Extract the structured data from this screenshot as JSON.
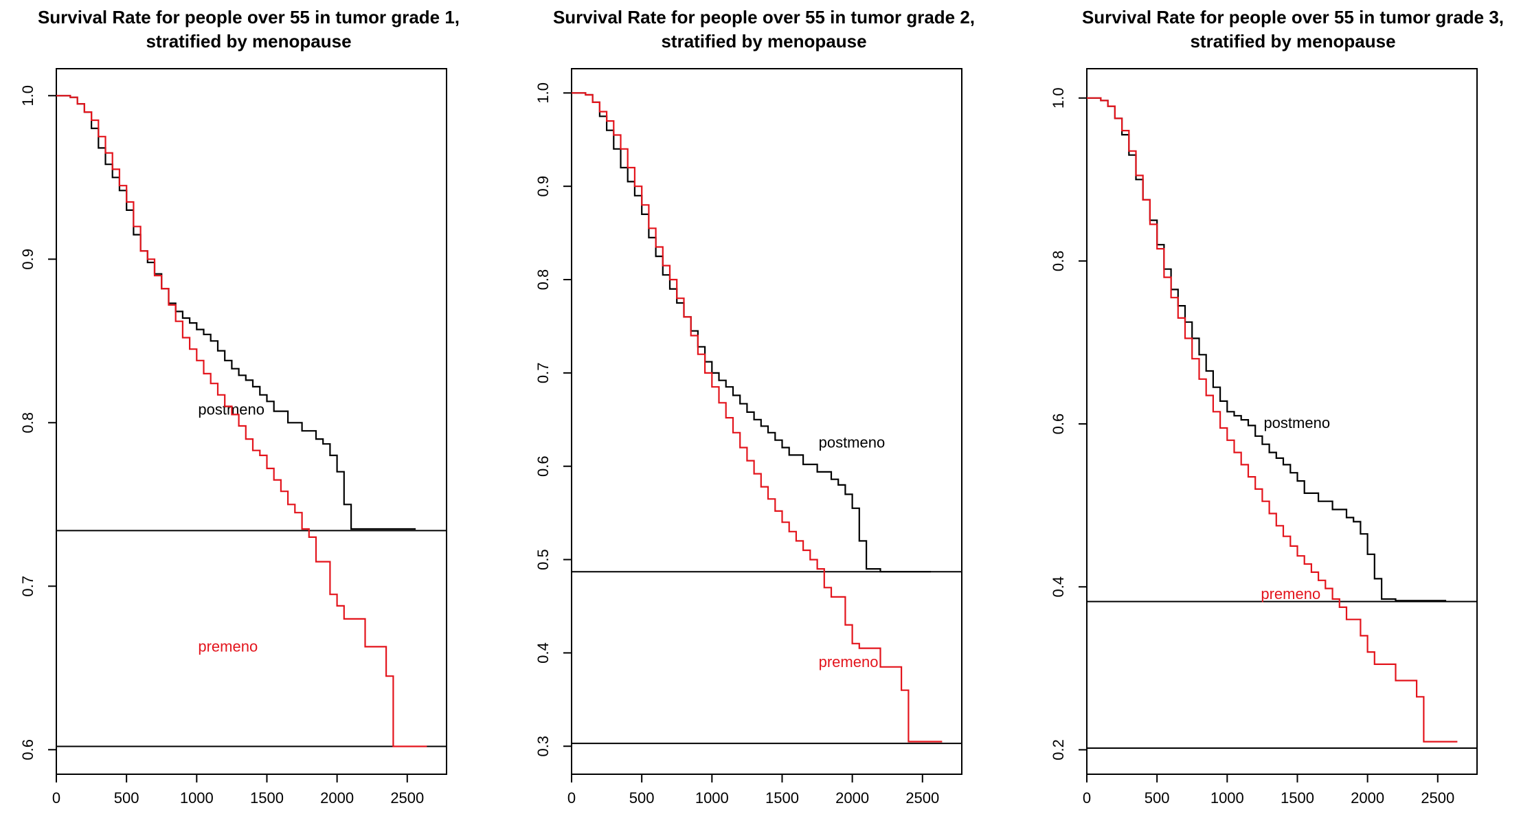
{
  "colors": {
    "postmeno": "#000000",
    "premeno": "#e3141c",
    "axes": "#000000",
    "background": "#ffffff"
  },
  "chart_data": [
    {
      "type": "line",
      "title": "Survival Rate for people over 55 in tumor grade 1,\nstratified by menopause",
      "title_lines": [
        "Survival Rate for people over 55 in tumor grade 1,",
        "stratified by menopause"
      ],
      "xlabel": "",
      "ylabel": "",
      "xlim": [
        0,
        2780
      ],
      "ylim": [
        0.585,
        1.0165
      ],
      "x_ticks": [
        0,
        500,
        1000,
        1500,
        2000,
        2500
      ],
      "x_tick_labels": [
        "0",
        "500",
        "1000",
        "1500",
        "2000",
        "2500"
      ],
      "y_ticks": [
        0.6,
        0.7,
        0.8,
        0.9,
        1.0
      ],
      "y_tick_labels": [
        "0.6",
        "0.7",
        "0.8",
        "0.9",
        "1.0"
      ],
      "grid": false,
      "reference_lines": [
        0.734,
        0.602
      ],
      "series": [
        {
          "name": "postmeno",
          "color": "#000000",
          "label_at": [
            1010,
            0.805
          ],
          "x": [
            0,
            100,
            150,
            200,
            250,
            300,
            350,
            400,
            450,
            500,
            550,
            600,
            650,
            700,
            750,
            800,
            850,
            900,
            950,
            1000,
            1050,
            1100,
            1150,
            1200,
            1250,
            1300,
            1350,
            1400,
            1450,
            1500,
            1550,
            1650,
            1750,
            1850,
            1900,
            1950,
            2000,
            2050,
            2100,
            2200,
            2300,
            2400,
            2500,
            2560
          ],
          "y": [
            1.0,
            0.999,
            0.995,
            0.99,
            0.98,
            0.968,
            0.958,
            0.95,
            0.942,
            0.93,
            0.915,
            0.905,
            0.898,
            0.891,
            0.882,
            0.873,
            0.868,
            0.864,
            0.861,
            0.857,
            0.854,
            0.85,
            0.844,
            0.838,
            0.833,
            0.829,
            0.826,
            0.822,
            0.817,
            0.813,
            0.807,
            0.8,
            0.795,
            0.79,
            0.787,
            0.78,
            0.77,
            0.75,
            0.735,
            0.735,
            0.735,
            0.735,
            0.735,
            0.735
          ]
        },
        {
          "name": "premeno",
          "color": "#e3141c",
          "label_at": [
            1010,
            0.66
          ],
          "x": [
            0,
            100,
            150,
            200,
            250,
            300,
            350,
            400,
            450,
            500,
            550,
            600,
            650,
            700,
            750,
            800,
            850,
            900,
            950,
            1000,
            1050,
            1100,
            1150,
            1200,
            1250,
            1300,
            1350,
            1400,
            1450,
            1500,
            1550,
            1600,
            1650,
            1700,
            1750,
            1800,
            1850,
            1900,
            1950,
            2000,
            2050,
            2100,
            2200,
            2300,
            2350,
            2400,
            2450,
            2500,
            2640
          ],
          "y": [
            1.0,
            0.999,
            0.995,
            0.99,
            0.985,
            0.975,
            0.965,
            0.955,
            0.945,
            0.935,
            0.92,
            0.905,
            0.9,
            0.89,
            0.882,
            0.872,
            0.862,
            0.852,
            0.845,
            0.838,
            0.83,
            0.824,
            0.817,
            0.81,
            0.805,
            0.798,
            0.79,
            0.783,
            0.78,
            0.772,
            0.765,
            0.758,
            0.75,
            0.745,
            0.735,
            0.73,
            0.715,
            0.715,
            0.695,
            0.688,
            0.68,
            0.68,
            0.663,
            0.663,
            0.645,
            0.602,
            0.602,
            0.602,
            0.602
          ]
        }
      ]
    },
    {
      "type": "line",
      "title": "Survival Rate for people over 55 in tumor grade 2,\nstratified by menopause",
      "title_lines": [
        "Survival Rate for people over 55 in tumor grade 2,",
        "stratified by menopause"
      ],
      "xlabel": "",
      "ylabel": "",
      "xlim": [
        0,
        2780
      ],
      "ylim": [
        0.27,
        1.026
      ],
      "x_ticks": [
        0,
        500,
        1000,
        1500,
        2000,
        2500
      ],
      "x_tick_labels": [
        "0",
        "500",
        "1000",
        "1500",
        "2000",
        "2500"
      ],
      "y_ticks": [
        0.3,
        0.4,
        0.5,
        0.6,
        0.7,
        0.8,
        0.9,
        1.0
      ],
      "y_tick_labels": [
        "0.3",
        "0.4",
        "0.5",
        "0.6",
        "0.7",
        "0.8",
        "0.9",
        "1.0"
      ],
      "grid": false,
      "reference_lines": [
        0.487,
        0.303
      ],
      "series": [
        {
          "name": "postmeno",
          "color": "#000000",
          "label_at": [
            1760,
            0.62
          ],
          "x": [
            0,
            100,
            150,
            200,
            250,
            300,
            350,
            400,
            450,
            500,
            550,
            600,
            650,
            700,
            750,
            800,
            850,
            900,
            950,
            1000,
            1050,
            1100,
            1150,
            1200,
            1250,
            1300,
            1350,
            1400,
            1450,
            1500,
            1550,
            1650,
            1750,
            1850,
            1900,
            1950,
            2000,
            2050,
            2100,
            2200,
            2300,
            2400,
            2500,
            2560
          ],
          "y": [
            1.0,
            0.998,
            0.99,
            0.975,
            0.96,
            0.94,
            0.92,
            0.905,
            0.89,
            0.87,
            0.845,
            0.825,
            0.805,
            0.79,
            0.775,
            0.76,
            0.745,
            0.728,
            0.712,
            0.7,
            0.692,
            0.685,
            0.676,
            0.667,
            0.658,
            0.65,
            0.643,
            0.636,
            0.628,
            0.62,
            0.612,
            0.602,
            0.594,
            0.586,
            0.58,
            0.57,
            0.555,
            0.52,
            0.49,
            0.487,
            0.487,
            0.487,
            0.487,
            0.487
          ]
        },
        {
          "name": "premeno",
          "color": "#e3141c",
          "label_at": [
            1760,
            0.385
          ],
          "x": [
            0,
            100,
            150,
            200,
            250,
            300,
            350,
            400,
            450,
            500,
            550,
            600,
            650,
            700,
            750,
            800,
            850,
            900,
            950,
            1000,
            1050,
            1100,
            1150,
            1200,
            1250,
            1300,
            1350,
            1400,
            1450,
            1500,
            1550,
            1600,
            1650,
            1700,
            1750,
            1800,
            1850,
            1900,
            1950,
            2000,
            2050,
            2100,
            2200,
            2300,
            2350,
            2400,
            2450,
            2500,
            2640
          ],
          "y": [
            1.0,
            0.998,
            0.99,
            0.98,
            0.97,
            0.955,
            0.94,
            0.92,
            0.9,
            0.88,
            0.855,
            0.835,
            0.815,
            0.8,
            0.78,
            0.76,
            0.74,
            0.72,
            0.7,
            0.685,
            0.668,
            0.652,
            0.636,
            0.62,
            0.606,
            0.592,
            0.578,
            0.565,
            0.552,
            0.54,
            0.53,
            0.52,
            0.51,
            0.5,
            0.49,
            0.47,
            0.46,
            0.46,
            0.43,
            0.41,
            0.405,
            0.405,
            0.385,
            0.385,
            0.36,
            0.305,
            0.305,
            0.305,
            0.305
          ]
        }
      ]
    },
    {
      "type": "line",
      "title": "Survival Rate for people over 55 in tumor grade 3,\nstratified by menopause",
      "title_lines": [
        "Survival Rate for people over 55 in tumor grade 3,",
        "stratified by menopause"
      ],
      "xlabel": "",
      "ylabel": "",
      "xlim": [
        0,
        2780
      ],
      "ylim": [
        0.17,
        1.036
      ],
      "x_ticks": [
        0,
        500,
        1000,
        1500,
        2000,
        2500
      ],
      "x_tick_labels": [
        "0",
        "500",
        "1000",
        "1500",
        "2000",
        "2500"
      ],
      "y_ticks": [
        0.2,
        0.4,
        0.6,
        0.8,
        1.0
      ],
      "y_tick_labels": [
        "0.2",
        "0.4",
        "0.6",
        "0.8",
        "1.0"
      ],
      "grid": false,
      "reference_lines": [
        0.382,
        0.202
      ],
      "series": [
        {
          "name": "postmeno",
          "color": "#000000",
          "label_at": [
            1260,
            0.595
          ],
          "x": [
            0,
            100,
            150,
            200,
            250,
            300,
            350,
            400,
            450,
            500,
            550,
            600,
            650,
            700,
            750,
            800,
            850,
            900,
            950,
            1000,
            1050,
            1100,
            1150,
            1200,
            1250,
            1300,
            1350,
            1400,
            1450,
            1500,
            1550,
            1650,
            1750,
            1850,
            1900,
            1950,
            2000,
            2050,
            2100,
            2200,
            2300,
            2400,
            2500,
            2560
          ],
          "y": [
            1.0,
            0.997,
            0.99,
            0.975,
            0.955,
            0.93,
            0.9,
            0.875,
            0.85,
            0.82,
            0.79,
            0.765,
            0.745,
            0.725,
            0.705,
            0.685,
            0.665,
            0.645,
            0.628,
            0.615,
            0.61,
            0.605,
            0.598,
            0.585,
            0.575,
            0.565,
            0.558,
            0.55,
            0.54,
            0.53,
            0.515,
            0.505,
            0.495,
            0.485,
            0.48,
            0.465,
            0.44,
            0.41,
            0.385,
            0.383,
            0.383,
            0.383,
            0.383,
            0.383
          ]
        },
        {
          "name": "premeno",
          "color": "#e3141c",
          "label_at": [
            1240,
            0.385
          ],
          "x": [
            0,
            100,
            150,
            200,
            250,
            300,
            350,
            400,
            450,
            500,
            550,
            600,
            650,
            700,
            750,
            800,
            850,
            900,
            950,
            1000,
            1050,
            1100,
            1150,
            1200,
            1250,
            1300,
            1350,
            1400,
            1450,
            1500,
            1550,
            1600,
            1650,
            1700,
            1750,
            1800,
            1850,
            1900,
            1950,
            2000,
            2050,
            2100,
            2200,
            2300,
            2350,
            2400,
            2450,
            2500,
            2640
          ],
          "y": [
            1.0,
            0.997,
            0.99,
            0.975,
            0.96,
            0.935,
            0.905,
            0.875,
            0.845,
            0.815,
            0.78,
            0.755,
            0.73,
            0.705,
            0.68,
            0.655,
            0.635,
            0.615,
            0.595,
            0.58,
            0.565,
            0.55,
            0.535,
            0.52,
            0.505,
            0.49,
            0.475,
            0.462,
            0.45,
            0.438,
            0.428,
            0.418,
            0.408,
            0.398,
            0.385,
            0.375,
            0.36,
            0.36,
            0.34,
            0.32,
            0.305,
            0.305,
            0.285,
            0.285,
            0.265,
            0.21,
            0.21,
            0.21,
            0.21
          ]
        }
      ]
    }
  ]
}
